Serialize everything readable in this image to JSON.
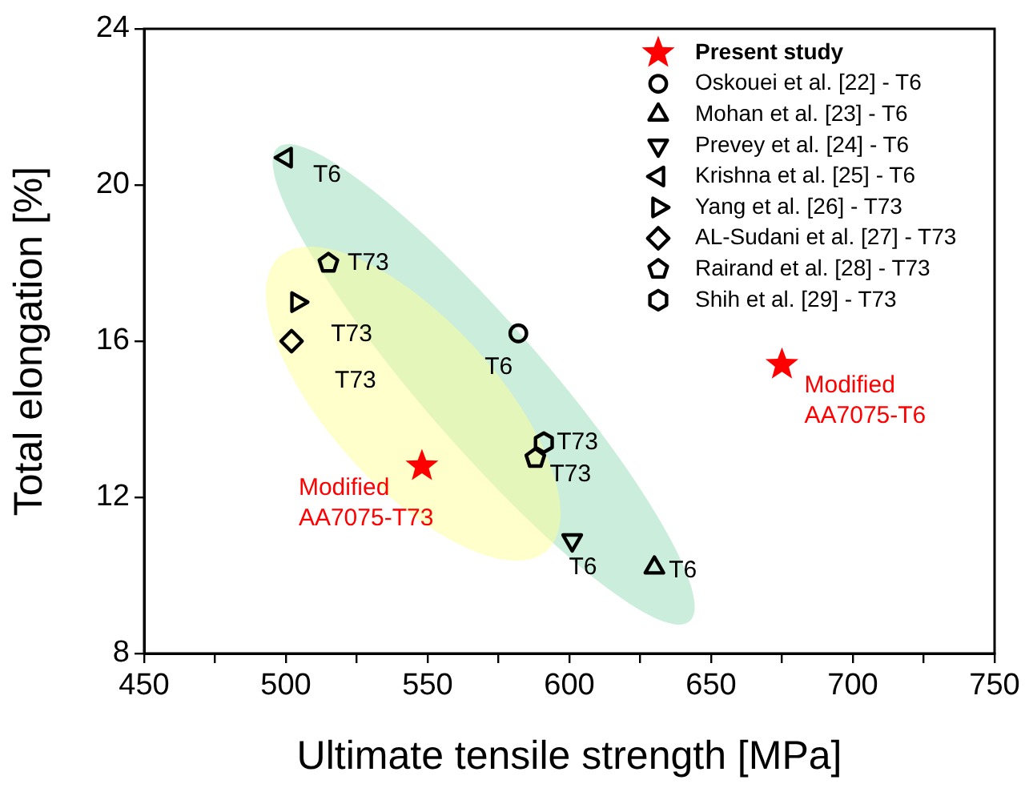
{
  "chart_data": {
    "type": "scatter",
    "xlabel": "Ultimate tensile strength [MPa]",
    "ylabel": "Total elongation [%]",
    "xlim": [
      450,
      750
    ],
    "xticks": [
      450,
      {
        "value": 475,
        "label": null
      },
      500,
      {
        "value": 525,
        "label": null
      },
      550,
      {
        "value": 575,
        "label": null
      },
      600,
      {
        "value": 625,
        "label": null
      },
      650,
      {
        "value": 675,
        "label": null
      },
      700,
      {
        "value": 725,
        "label": null
      },
      750
    ],
    "ylim": [
      8,
      24
    ],
    "yticks": [
      8,
      12,
      16,
      20,
      24
    ],
    "grid": false,
    "legend": "top right",
    "series": [
      {
        "name": "Present study",
        "color": "#ff0000",
        "marker": "star",
        "x": [
          548,
          675
        ],
        "values": [
          12.8,
          15.4
        ],
        "value_labels": [
          "Modified AA7075-T73",
          "Modified AA7075-T6"
        ]
      },
      {
        "name": "Oskouei et al. [22] - T6",
        "color": "#000000",
        "marker": "circle",
        "x": [
          582
        ],
        "values": [
          16.2
        ],
        "value_labels": [
          "T6"
        ]
      },
      {
        "name": "Mohan et al. [23] - T6",
        "color": "#000000",
        "marker": "triangle-up",
        "x": [
          630
        ],
        "values": [
          10.2
        ],
        "value_labels": [
          "T6"
        ]
      },
      {
        "name": "Prevey et al. [24] - T6",
        "color": "#000000",
        "marker": "triangle-down",
        "x": [
          601
        ],
        "values": [
          10.9
        ],
        "value_labels": [
          "T6"
        ]
      },
      {
        "name": "Krishna et al. [25] - T6",
        "color": "#000000",
        "marker": "triangle-left",
        "x": [
          500
        ],
        "values": [
          20.7
        ],
        "value_labels": [
          "T6"
        ]
      },
      {
        "name": "Yang et al. [26] - T73",
        "color": "#000000",
        "marker": "triangle-right",
        "x": [
          504
        ],
        "values": [
          17.0
        ],
        "value_labels": [
          "T73"
        ]
      },
      {
        "name": "AL-Sudani et al. [27] - T73",
        "color": "#000000",
        "marker": "diamond",
        "x": [
          502
        ],
        "values": [
          16.0
        ],
        "value_labels": [
          "T73"
        ]
      },
      {
        "name": "Rairand et al. [28] - T73",
        "color": "#000000",
        "x": [
          515,
          588
        ],
        "values": [
          18.0,
          13.0
        ],
        "value_labels": [
          "T73",
          "T73"
        ]
      },
      {
        "name": "Shih et al. [29] - T73",
        "color": "#000000",
        "x": [
          591
        ],
        "values": [
          13.4
        ],
        "value_labels": [
          "T73"
        ]
      }
    ]
  }
}
